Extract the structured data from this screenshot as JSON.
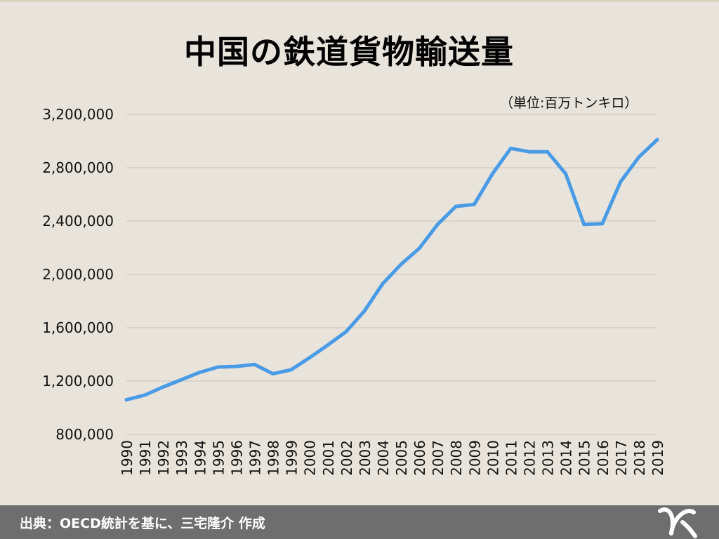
{
  "title": "中国の鉄道貨物輸送量",
  "unit_note": "（単位:百万トンキロ）",
  "footer": {
    "source": "出典：OECD統計を基に、三宅隆介 作成"
  },
  "logo_icon": "mr-logo-icon",
  "colors": {
    "line": "#4a9be6",
    "grid": "#c9c5bd",
    "background": "#e8e4dc",
    "footer": "#6e6e6e"
  },
  "chart_data": {
    "type": "line",
    "title": "中国の鉄道貨物輸送量",
    "unit": "（単位:百万トンキロ）",
    "x": [
      "1990",
      "1991",
      "1992",
      "1993",
      "1994",
      "1995",
      "1996",
      "1997",
      "1998",
      "1999",
      "2000",
      "2001",
      "2002",
      "2003",
      "2004",
      "2005",
      "2006",
      "2007",
      "2008",
      "2009",
      "2010",
      "2011",
      "2012",
      "2013",
      "2014",
      "2015",
      "2016",
      "2017",
      "2018",
      "2019"
    ],
    "values": [
      1060000,
      1095000,
      1155000,
      1210000,
      1265000,
      1305000,
      1310000,
      1325000,
      1255000,
      1285000,
      1375000,
      1470000,
      1570000,
      1725000,
      1930000,
      2075000,
      2195000,
      2375000,
      2510000,
      2525000,
      2755000,
      2945000,
      2920000,
      2920000,
      2755000,
      2375000,
      2380000,
      2695000,
      2880000,
      3010000
    ],
    "ylim": [
      800000,
      3200000
    ],
    "yticks": [
      800000,
      1200000,
      1600000,
      2000000,
      2400000,
      2800000,
      3200000
    ],
    "ytick_labels": [
      "800,000",
      "1,200,000",
      "1,600,000",
      "2,000,000",
      "2,400,000",
      "2,800,000",
      "3,200,000"
    ],
    "grid": true
  }
}
